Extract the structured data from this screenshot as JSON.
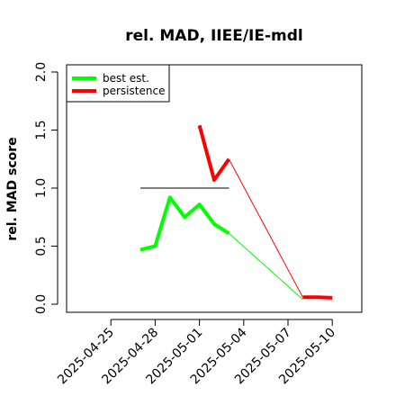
{
  "chart_data": {
    "type": "line",
    "title": "rel. MAD, IIEE/IE-mdl",
    "ylabel": "rel. MAD score",
    "xlabel": "",
    "ylim": [
      0.0,
      2.0
    ],
    "yticks": [
      0.0,
      0.5,
      1.0,
      1.5,
      2.0
    ],
    "ytick_labels": [
      "0.0",
      "0.5",
      "1.0",
      "1.5",
      "2.0"
    ],
    "xlim": [
      "2025-04-22",
      "2025-05-12"
    ],
    "xticks": [
      "2025-04-25",
      "2025-04-28",
      "2025-05-01",
      "2025-05-04",
      "2025-05-07",
      "2025-05-10"
    ],
    "legend": {
      "placement": "top-left",
      "entries": [
        "best est.",
        "persistence"
      ]
    },
    "reference_line": {
      "y": 1.0,
      "x_start": "2025-04-27",
      "x_end": "2025-05-03",
      "color": "#555555"
    },
    "series": [
      {
        "name": "best est.",
        "color": "#00ff00",
        "x": [
          "2025-04-27",
          "2025-04-28",
          "2025-04-29",
          "2025-04-30",
          "2025-05-01",
          "2025-05-02",
          "2025-05-03"
        ],
        "values": [
          0.47,
          0.5,
          0.92,
          0.75,
          0.86,
          0.69,
          0.61
        ],
        "extension": {
          "x": [
            "2025-05-03",
            "2025-05-08"
          ],
          "values": [
            0.61,
            0.04
          ]
        },
        "tail": {
          "x": [],
          "values": []
        }
      },
      {
        "name": "persistence",
        "color": "#ff0000",
        "x": [
          "2025-05-01",
          "2025-05-02",
          "2025-05-03"
        ],
        "values": [
          1.54,
          1.07,
          1.25
        ],
        "extension": {
          "x": [
            "2025-05-03",
            "2025-05-08"
          ],
          "values": [
            1.25,
            0.06
          ]
        },
        "tail": {
          "x": [
            "2025-05-08",
            "2025-05-09",
            "2025-05-10"
          ],
          "values": [
            0.06,
            0.06,
            0.055
          ]
        }
      }
    ]
  }
}
